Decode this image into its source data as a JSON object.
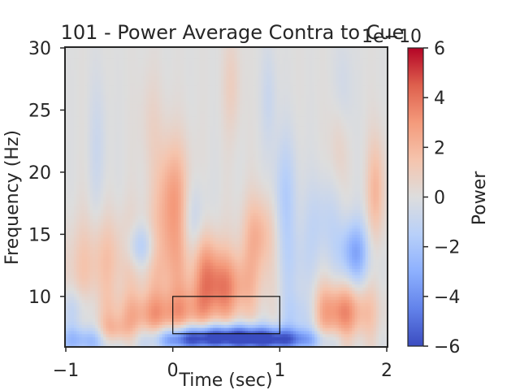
{
  "chart_data": {
    "type": "heatmap",
    "title": "101 - Power Average Contra to Cue",
    "xlabel": "Time (sec)",
    "ylabel": "Frequency (Hz)",
    "xlim": [
      -1,
      2
    ],
    "ylim": [
      6,
      30
    ],
    "xticks": [
      "−1",
      "0",
      "1",
      "2"
    ],
    "yticks": [
      "10",
      "15",
      "20",
      "25",
      "30"
    ],
    "colorbar": {
      "label": "Power",
      "offset_text": "1e−10",
      "range": [
        -6,
        6
      ],
      "ticks": [
        "−6",
        "−4",
        "−2",
        "0",
        "2",
        "4",
        "6"
      ],
      "colormap": "coolwarm"
    },
    "roi_box": {
      "time": [
        0,
        1
      ],
      "freq": [
        7,
        10
      ]
    },
    "features": [
      {
        "t": 0.0,
        "f": 18.0,
        "st": 0.11,
        "sf": 3.2,
        "v": 2.8
      },
      {
        "t": -0.05,
        "f": 13.0,
        "st": 0.2,
        "sf": 2.6,
        "v": 1.2
      },
      {
        "t": -0.5,
        "f": 13.5,
        "st": 0.25,
        "sf": 2.2,
        "v": 1.0
      },
      {
        "t": -0.8,
        "f": 11.5,
        "st": 0.22,
        "sf": 3.0,
        "v": 1.0
      },
      {
        "t": 0.4,
        "f": 10.8,
        "st": 0.25,
        "sf": 2.0,
        "v": 3.8
      },
      {
        "t": 0.3,
        "f": 13.0,
        "st": 0.1,
        "sf": 2.0,
        "v": 1.6
      },
      {
        "t": 0.8,
        "f": 15.0,
        "st": 0.11,
        "sf": 2.2,
        "v": 2.2
      },
      {
        "t": -0.15,
        "f": 8.5,
        "st": 0.3,
        "sf": 1.3,
        "v": 2.6
      },
      {
        "t": -0.55,
        "f": 7.0,
        "st": 0.12,
        "sf": 0.8,
        "v": 2.5
      },
      {
        "t": 1.55,
        "f": 8.8,
        "st": 0.22,
        "sf": 1.6,
        "v": 3.5
      },
      {
        "t": 1.9,
        "f": 18.5,
        "st": 0.06,
        "sf": 3.0,
        "v": 2.0
      },
      {
        "t": 1.55,
        "f": 22.0,
        "st": 0.06,
        "sf": 2.5,
        "v": 0.8
      },
      {
        "t": 0.55,
        "f": 27.0,
        "st": 0.06,
        "sf": 3.0,
        "v": 0.9
      },
      {
        "t": -0.2,
        "f": 24.0,
        "st": 0.08,
        "sf": 3.0,
        "v": 0.6
      },
      {
        "t": -0.3,
        "f": 14.0,
        "st": 0.1,
        "sf": 1.3,
        "v": -2.5
      },
      {
        "t": 0.2,
        "f": 15.5,
        "st": 0.08,
        "sf": 2.5,
        "v": -1.5
      },
      {
        "t": 1.05,
        "f": 18.0,
        "st": 0.08,
        "sf": 3.5,
        "v": -1.6
      },
      {
        "t": 1.7,
        "f": 13.5,
        "st": 0.1,
        "sf": 1.8,
        "v": -3.3
      },
      {
        "t": 1.4,
        "f": 16.0,
        "st": 0.12,
        "sf": 2.5,
        "v": -1.2
      },
      {
        "t": 1.15,
        "f": 12.0,
        "st": 0.12,
        "sf": 2.5,
        "v": -1.0
      },
      {
        "t": 0.5,
        "f": 6.8,
        "st": 0.35,
        "sf": 0.7,
        "v": -6.0
      },
      {
        "t": 1.0,
        "f": 6.5,
        "st": 0.3,
        "sf": 0.6,
        "v": -4.0
      },
      {
        "t": -0.8,
        "f": 6.5,
        "st": 0.25,
        "sf": 0.8,
        "v": -3.0
      },
      {
        "t": 0.1,
        "f": 6.5,
        "st": 0.2,
        "sf": 0.6,
        "v": -3.0
      },
      {
        "t": 1.2,
        "f": 8.5,
        "st": 0.12,
        "sf": 1.4,
        "v": -2.0
      },
      {
        "t": 0.2,
        "f": 11.5,
        "st": 0.12,
        "sf": 1.5,
        "v": -1.2
      },
      {
        "t": -0.9,
        "f": 9.0,
        "st": 0.12,
        "sf": 1.2,
        "v": -1.5
      },
      {
        "t": -0.7,
        "f": 22.0,
        "st": 0.06,
        "sf": 4.0,
        "v": -0.7
      },
      {
        "t": 0.9,
        "f": 26.0,
        "st": 0.05,
        "sf": 3.0,
        "v": -0.8
      },
      {
        "t": 1.6,
        "f": 26.5,
        "st": 0.06,
        "sf": 3.0,
        "v": -0.6
      }
    ]
  }
}
